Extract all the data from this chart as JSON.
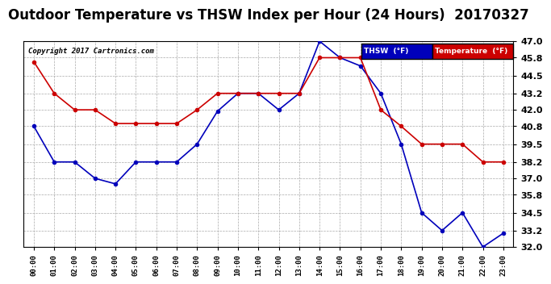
{
  "title": "Outdoor Temperature vs THSW Index per Hour (24 Hours)  20170327",
  "copyright": "Copyright 2017 Cartronics.com",
  "hours": [
    "00:00",
    "01:00",
    "02:00",
    "03:00",
    "04:00",
    "05:00",
    "06:00",
    "07:00",
    "08:00",
    "09:00",
    "10:00",
    "11:00",
    "12:00",
    "13:00",
    "14:00",
    "15:00",
    "16:00",
    "17:00",
    "18:00",
    "19:00",
    "20:00",
    "21:00",
    "22:00",
    "23:00"
  ],
  "thsw": [
    40.8,
    38.2,
    38.2,
    37.0,
    36.6,
    38.2,
    38.2,
    38.2,
    39.5,
    41.9,
    43.2,
    43.2,
    42.0,
    43.2,
    47.0,
    45.8,
    45.2,
    43.2,
    39.5,
    34.5,
    33.2,
    34.5,
    32.0,
    33.0
  ],
  "temp": [
    45.5,
    43.2,
    42.0,
    42.0,
    41.0,
    41.0,
    41.0,
    41.0,
    42.0,
    43.2,
    43.2,
    43.2,
    43.2,
    43.2,
    45.8,
    45.8,
    45.8,
    42.0,
    40.8,
    39.5,
    39.5,
    39.5,
    38.2,
    38.2
  ],
  "thsw_color": "#0000bb",
  "temp_color": "#cc0000",
  "background_color": "#ffffff",
  "grid_color": "#aaaaaa",
  "ylim": [
    32.0,
    47.0
  ],
  "yticks": [
    32.0,
    33.2,
    34.5,
    35.8,
    37.0,
    38.2,
    39.5,
    40.8,
    42.0,
    43.2,
    44.5,
    45.8,
    47.0
  ],
  "title_fontsize": 12,
  "legend_thsw_bg": "#0000bb",
  "legend_temp_bg": "#cc0000",
  "legend_text_thsw": "THSW  (°F)",
  "legend_text_temp": "Temperature  (°F)"
}
